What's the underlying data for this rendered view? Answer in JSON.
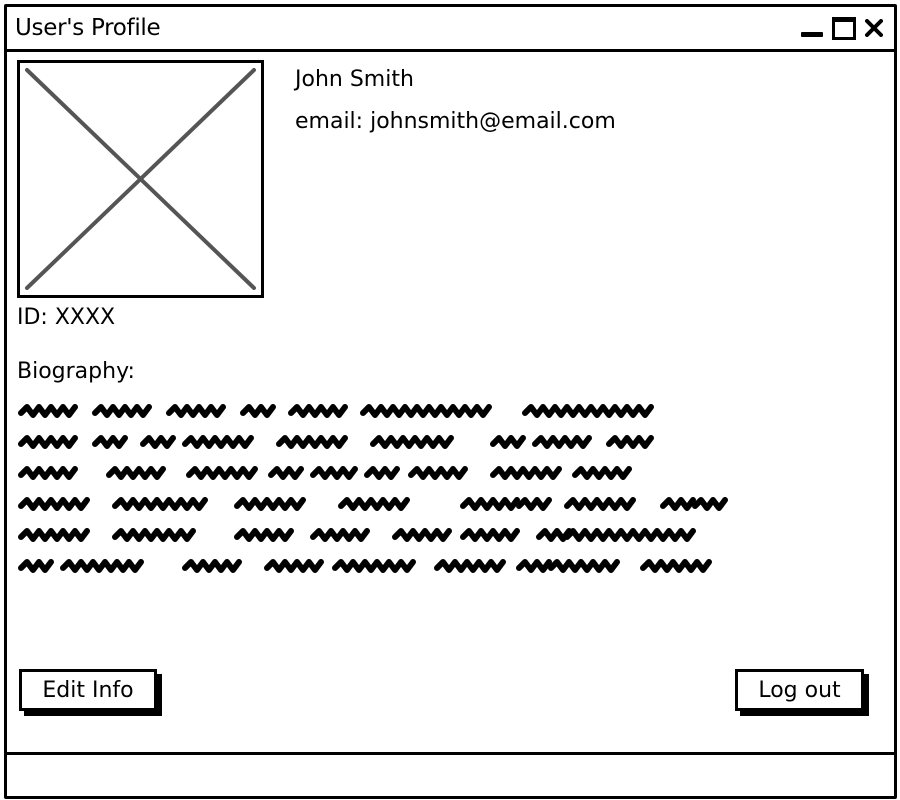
{
  "window": {
    "title": "User's Profile",
    "controls": {
      "minimize_icon": "minimize-icon",
      "maximize_icon": "maximize-icon",
      "close_icon": "close-icon"
    }
  },
  "profile": {
    "photo_icon": "image-placeholder-icon",
    "name": "John Smith",
    "email": "email: johnsmith@email.com",
    "id": "ID: XXXX",
    "biography_label": "Biography:"
  },
  "actions": {
    "edit_label": "Edit Info",
    "logout_label": "Log out"
  },
  "statusbar": {
    "text": ""
  }
}
